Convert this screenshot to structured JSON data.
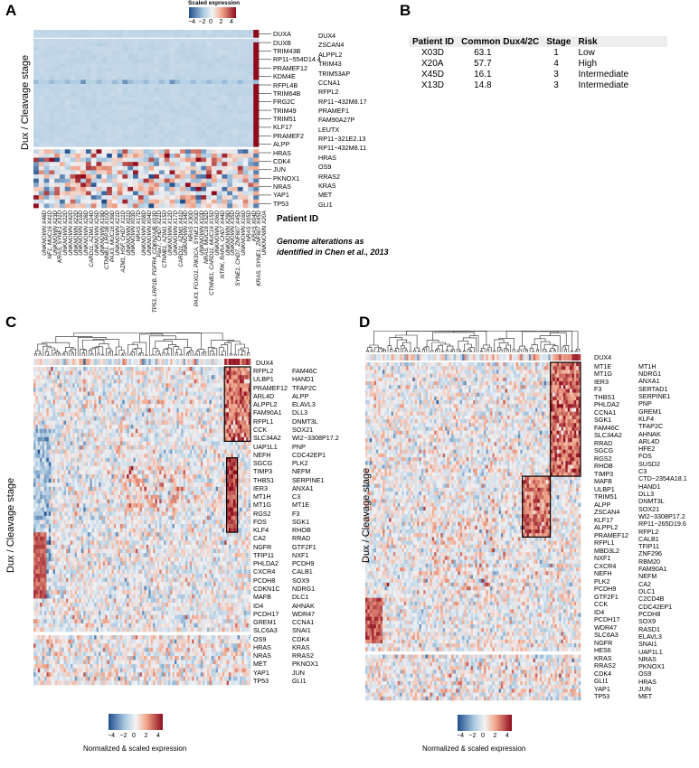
{
  "panels": {
    "a": "A",
    "b": "B",
    "c": "C",
    "d": "D"
  },
  "panel_a": {
    "legend_title": "Scaled expression",
    "legend_ticks": [
      "−4",
      "−2",
      "0",
      "2",
      "4"
    ],
    "ylabel": "Dux / Cleavage stage",
    "patient_label": "Patient ID",
    "footnote_line1": "Genome alterations as",
    "footnote_line2": "identified in Chen et al., 2013",
    "left_genes": [
      "DUXA",
      "DUXB",
      "TRIM43B",
      "RP11−554D14.4",
      "PRAMEF12",
      "KDM4E",
      "RFPL4B",
      "TRIM64B",
      "FRG2C",
      "TRIM49",
      "TRIM51",
      "KLF17",
      "PRAMEF2",
      "ALPP",
      "HRAS",
      "CDK4",
      "JUN",
      "PKNOX1",
      "NRAS",
      "YAP1",
      "TP53"
    ],
    "right_genes": [
      "DUX4",
      "ZSCAN4",
      "ALPPL2",
      "TRIM43",
      "TRIM53AP",
      "CCNA1",
      "RFPL2",
      "RP11−432M8.17",
      "PRAMEF1",
      "FAM90A27P",
      "LEUTX",
      "RP11−321E2.13",
      "RP11−432M8.11",
      "HRAS",
      "OS9",
      "RRAS2",
      "KRAS",
      "MET",
      "GLI1"
    ],
    "patient_ids": [
      "UNKNOWN X48D",
      "NF1, MUC16 X41D",
      "UNKNOWN X23D",
      "KRAS, SYNE1 X31D",
      "UNKNOWN X22D",
      "UNKNOWN X42D",
      "UNKNOWN X22D",
      "UNKNOWN X16D",
      "UNKNOWN X28D",
      "CARD11, AZIM1 X24D",
      "UNKNOWN X26D",
      "UNKNOWN X19D",
      "CTNNB1, LRP1B X10D",
      "PAX3, MUC16 X39D",
      "UNKNOWN X21D",
      "AZM1, HSF, CHD7 X11D",
      "UNKNOWN X01D",
      "UNKNOWN X03D",
      "NRAS X17D",
      "UNKNOWN X08D",
      "UNKNOWN X04D",
      "TP53, LRP1B, FGFR4, CDKN2A/B X03D",
      "Pax7, CHD7 X21D",
      "CTNNB1, AZIM1 X15D",
      "UNKNOWN X12D",
      "UNKNOWN X17D",
      "CARD11, AZIM1 X41D",
      "UNKNOWN X34D",
      "NRAS X30D",
      "PAX3, FOXO1, PIK3CA, SYNE1 X50D",
      "UNKNOWN X10D",
      "NRAS, MUC16 X32D",
      "CTNNB1, CARD11, MUC16 X15D",
      "UNKNOWN X06D",
      "NTRK, RARA, CHD7 X44D",
      "UNKNOWN X29D",
      "UNKNOWN X35D",
      "SYNE1, CHD7, ZNF607 X45D",
      "UNKNOWN X16D",
      "NRAS X05D",
      "KRAS X04D",
      "KRAS, SYNE1, ZNF607 X45D",
      "UNKNOWN X20A"
    ]
  },
  "panel_b": {
    "headers": [
      "Patient ID",
      "Common Dux4/2C",
      "Stage",
      "Risk"
    ],
    "rows": [
      [
        "X03D",
        "63.1",
        "1",
        "Low"
      ],
      [
        "X20A",
        "57.7",
        "4",
        "High"
      ],
      [
        "X45D",
        "16.1",
        "3",
        "Intermediate"
      ],
      [
        "X13D",
        "14.8",
        "3",
        "Intermediate"
      ]
    ]
  },
  "panel_c": {
    "ylabel": "Dux / Cleavage stage",
    "top_label": "DUX4",
    "legend_title": "Normalized & scaled expression",
    "legend_ticks": [
      "−4",
      "−2",
      "0",
      "2",
      "4"
    ],
    "left_genes": [
      "RFPL2",
      "ULBP1",
      "PRAMEF12",
      "ARL4D",
      "ALPPL2",
      "FAM90A1",
      "RFPL1",
      "CCK",
      "SLC34A2",
      "UAP1L1",
      "NEFH",
      "SGCG",
      "TIMP3",
      "THBS1",
      "IER3",
      "MT1H",
      "MT1G",
      "RGS2",
      "FOS",
      "KLF4",
      "CA2",
      "NGFR",
      "TFIP11",
      "PHLDA2",
      "CXCR4",
      "PCDH8",
      "CDKN1C",
      "MAFB",
      "ID4",
      "PCDH17",
      "GREM1",
      "SLC6A3",
      "OS9",
      "HRAS",
      "NRAS",
      "MET",
      "YAP1",
      "TP53"
    ],
    "right_genes": [
      "FAM46C",
      "HAND1",
      "TFAP2C",
      "ALPP",
      "ELAVL3",
      "DLL3",
      "DNMT3L",
      "SOX21",
      "WI2−3308P17.2",
      "PNP",
      "CDC42EP1",
      "PLK2",
      "NEFM",
      "SERPINE1",
      "ANXA1",
      "C3",
      "MT1E",
      "F3",
      "SGK1",
      "RHOB",
      "RRAD",
      "GTF2F1",
      "NXF1",
      "PCDH9",
      "CALB1",
      "SOX9",
      "NDRG1",
      "DLC1",
      "AHNAK",
      "WDR47",
      "CCNA1",
      "SNAI1",
      "CDK4",
      "KRAS",
      "RRAS2",
      "PKNOX1",
      "JUN",
      "GLI1"
    ]
  },
  "panel_d": {
    "ylabel": "Dux / Cleavage stage",
    "top_label": "DUX4",
    "legend_title": "Normalized & scaled expression",
    "legend_ticks": [
      "−4",
      "−2",
      "0",
      "2",
      "4"
    ],
    "left_genes": [
      "MT1E",
      "MT1G",
      "IER3",
      "F3",
      "THBS1",
      "PHLDA2",
      "CCNA1",
      "SGK1",
      "FAM46C",
      "SLC34A2",
      "RRAD",
      "SGCG",
      "RGS2",
      "RHOB",
      "TIMP3",
      "MAFB",
      "ULBP1",
      "TRIM51",
      "ALPP",
      "ZSCAN4",
      "KLF17",
      "ALPPL2",
      "PRAMEF12",
      "RFPL1",
      "MBD3L2",
      "NXF1",
      "CXCR4",
      "NEFH",
      "PLK2",
      "PCDH9",
      "GTF2F1",
      "CCK",
      "ID4",
      "PCDH17",
      "WDR47",
      "SLC6A3",
      "NGFR",
      "HES6",
      "KRAS",
      "RRAS2",
      "CDK4",
      "GLI1",
      "YAP1",
      "TP53"
    ],
    "right_genes": [
      "MT1H",
      "NDRG1",
      "ANXA1",
      "SERTAD1",
      "SERPINE1",
      "PNP",
      "GREM1",
      "KLF4",
      "TFAP2C",
      "AHNAK",
      "ARL4D",
      "HFE2",
      "FOS",
      "SUSD2",
      "C3",
      "CTD−2354A18.1",
      "HAND1",
      "DLL3",
      "DNMT3L",
      "SOX21",
      "WI2−3308P17.2",
      "RP11−265D19.6",
      "RFPL2",
      "CALB1",
      "TFIP11",
      "ZNF296",
      "RBM20",
      "FAM90A1",
      "NEFM",
      "CA2",
      "DLC1",
      "C2CD4B",
      "CDC42EP1",
      "PCDH8",
      "SOX9",
      "RASD1",
      "ELAVL3",
      "SNAI1",
      "UAP1L1",
      "NRAS",
      "PKNOX1",
      "OS9",
      "HRAS",
      "JUN",
      "MET"
    ]
  },
  "chart_data": [
    {
      "type": "heatmap",
      "title": "",
      "legend_title": "Scaled expression",
      "color_range": [
        -4,
        4
      ],
      "ylabel": "Dux / Cleavage stage",
      "xlabel": "Patient ID",
      "n_columns": 43,
      "row_groups": [
        {
          "name": "Dux / Cleavage stage",
          "rows": 28
        },
        {
          "name": "",
          "rows": 14
        }
      ]
    },
    {
      "type": "table",
      "columns": [
        "Patient ID",
        "Common Dux4/2C",
        "Stage",
        "Risk"
      ],
      "rows": [
        [
          "X03D",
          63.1,
          1,
          "Low"
        ],
        [
          "X20A",
          57.7,
          4,
          "High"
        ],
        [
          "X45D",
          16.1,
          3,
          "Intermediate"
        ],
        [
          "X13D",
          14.8,
          3,
          "Intermediate"
        ]
      ]
    },
    {
      "type": "heatmap",
      "legend_title": "Normalized & scaled expression",
      "color_range": [
        -4,
        4
      ],
      "ylabel": "Dux / Cleavage stage",
      "n_columns": 100,
      "row_groups": [
        {
          "name": "Dux / Cleavage stage",
          "rows": 64
        },
        {
          "name": "",
          "rows": 12
        }
      ]
    },
    {
      "type": "heatmap",
      "legend_title": "Normalized & scaled expression",
      "color_range": [
        -4,
        4
      ],
      "ylabel": "Dux / Cleavage stage",
      "n_columns": 100,
      "row_groups": [
        {
          "name": "Dux / Cleavage stage",
          "rows": 76
        },
        {
          "name": "",
          "rows": 12
        }
      ]
    }
  ]
}
